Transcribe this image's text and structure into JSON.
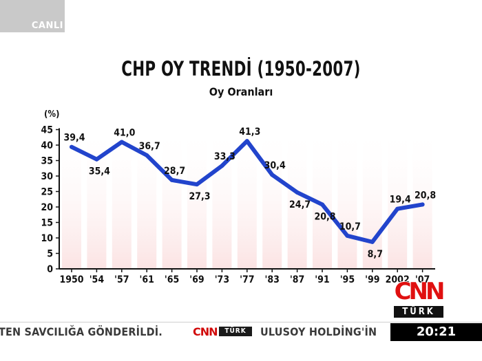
{
  "live_badge": "CANLI",
  "chart_data": {
    "type": "line",
    "title": "CHP OY TRENDİ (1950-2007)",
    "subtitle": "Oy Oranları",
    "ylabel": "(%)",
    "xlabel": "",
    "categories": [
      "1950",
      "'54",
      "'57",
      "'61",
      "'65",
      "'69",
      "'73",
      "'77",
      "'83",
      "'87",
      "'91",
      "'95",
      "'99",
      "2002",
      "'07"
    ],
    "values": [
      39.4,
      35.4,
      41.0,
      36.7,
      28.7,
      27.3,
      33.3,
      41.3,
      30.4,
      24.7,
      20.8,
      10.7,
      8.7,
      19.4,
      20.8
    ],
    "value_labels": [
      "39,4",
      "35,4",
      "41,0",
      "36,7",
      "28,7",
      "27,3",
      "33,3",
      "41,3",
      "30,4",
      "24,7",
      "20,8",
      "10,7",
      "8,7",
      "19,4",
      "20,8"
    ],
    "label_pos": [
      "above",
      "below",
      "above",
      "above",
      "above",
      "below",
      "above",
      "above",
      "above",
      "below",
      "below",
      "above",
      "below",
      "above",
      "above"
    ],
    "yticks": [
      0,
      5,
      10,
      15,
      20,
      25,
      30,
      35,
      40,
      45
    ],
    "ylim": [
      0,
      45
    ],
    "line_color": "#2244cc",
    "grid": false
  },
  "ticker": {
    "text_left": "TEN SAVCILIĞA GÖNDERİLDİ.",
    "logo_cnn": "CNN",
    "logo_turk": "TÜRK",
    "text_right": "ULUSOY HOLDİNG'İN"
  },
  "clock": "20:21",
  "network_logo": {
    "cnn": "CNN",
    "turk": "TÜRK"
  }
}
